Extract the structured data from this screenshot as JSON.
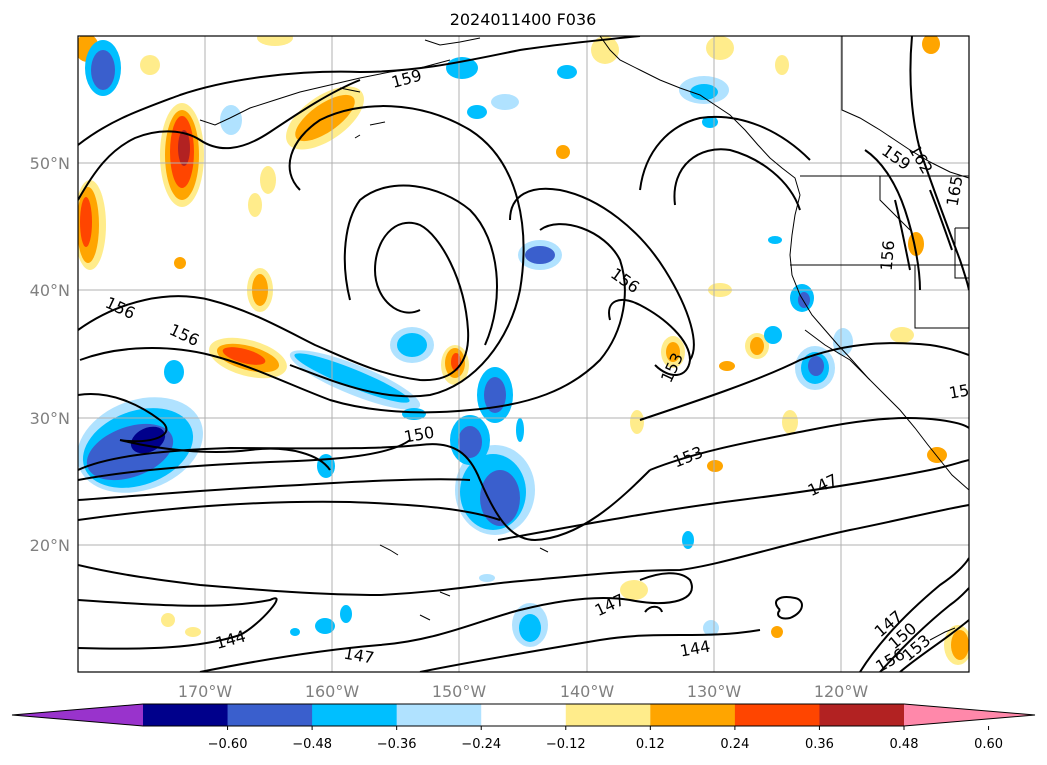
{
  "figure": {
    "title": "2024011400 F036"
  },
  "map": {
    "lat_labels": [
      "50°N",
      "40°N",
      "30°N",
      "20°N"
    ],
    "lon_labels": [
      "170°W",
      "160°W",
      "150°W",
      "140°W",
      "130°W",
      "120°W"
    ],
    "contour_labels": [
      "159",
      "159",
      "162",
      "165",
      "156",
      "156",
      "156",
      "156",
      "153",
      "153",
      "150",
      "147",
      "147",
      "144",
      "144",
      "147",
      "147",
      "150",
      "153",
      "156",
      "15"
    ]
  },
  "colorbar": {
    "ticks": [
      "−0.60",
      "−0.48",
      "−0.36",
      "−0.24",
      "−0.12",
      "0.12",
      "0.24",
      "0.36",
      "0.48",
      "0.60"
    ],
    "colors": [
      "#9933cc",
      "#00008b",
      "#3a5fcd",
      "#00bfff",
      "#b0e2ff",
      "#ffffff",
      "#ffec8b",
      "#ffa500",
      "#ff4500",
      "#b22222",
      "#ff88aa"
    ]
  }
}
